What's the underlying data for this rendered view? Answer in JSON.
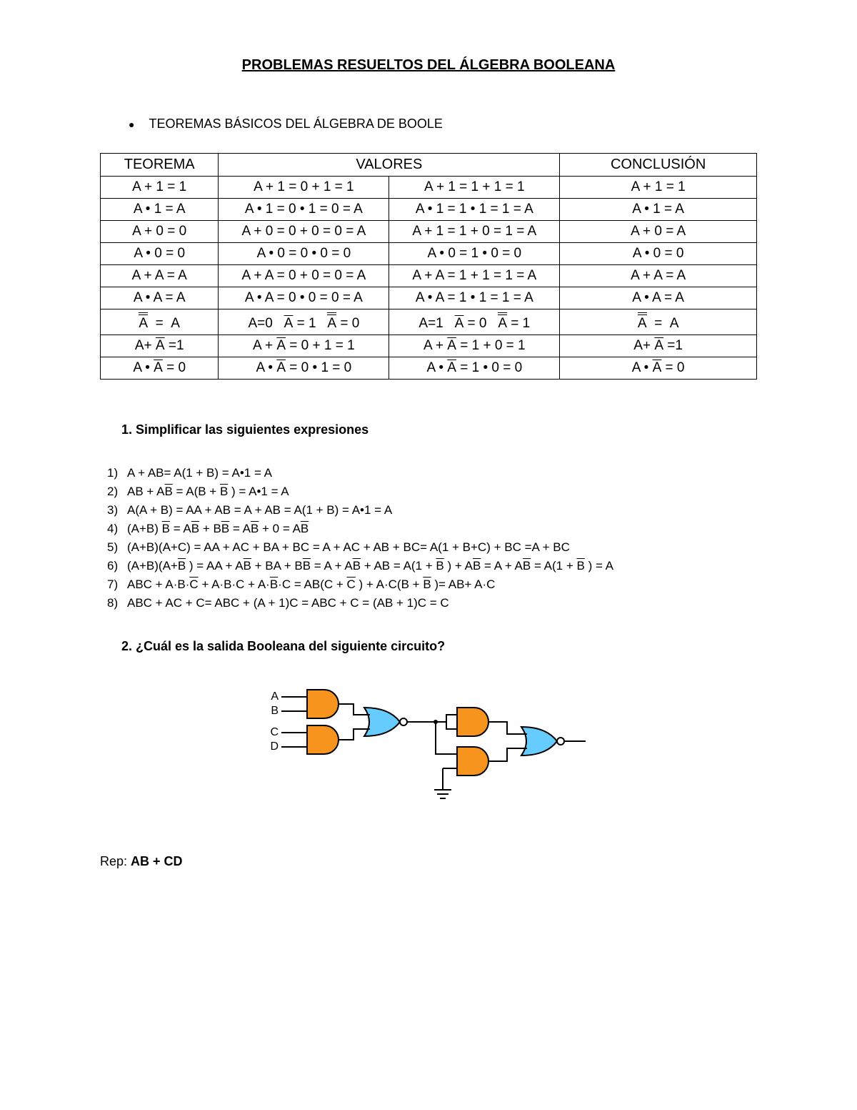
{
  "title": "PROBLEMAS RESUELTOS DEL ÁLGEBRA BOOLEANA",
  "bullet": "TEOREMAS BÁSICOS DEL ÁLGEBRA DE BOOLE",
  "table": {
    "headers": {
      "c1": "TEOREMA",
      "c2": "VALORES",
      "c3": "CONCLUSIÓN"
    }
  },
  "section1": "1.  Simplificar las siguientes expresiones",
  "section2": "2.  ¿Cuál es la salida Booleana del siguiente circuito?",
  "rep_label": "Rep: ",
  "rep_value": "AB + CD",
  "circuit": {
    "labels": {
      "a": "A",
      "b": "B",
      "c": "C",
      "d": "D"
    },
    "colors": {
      "and_fill": "#f7941d",
      "nor_fill": "#66ccff",
      "stroke": "#000000",
      "wire": "#000000",
      "bg": "#ffffff"
    },
    "stroke_width": 2
  }
}
